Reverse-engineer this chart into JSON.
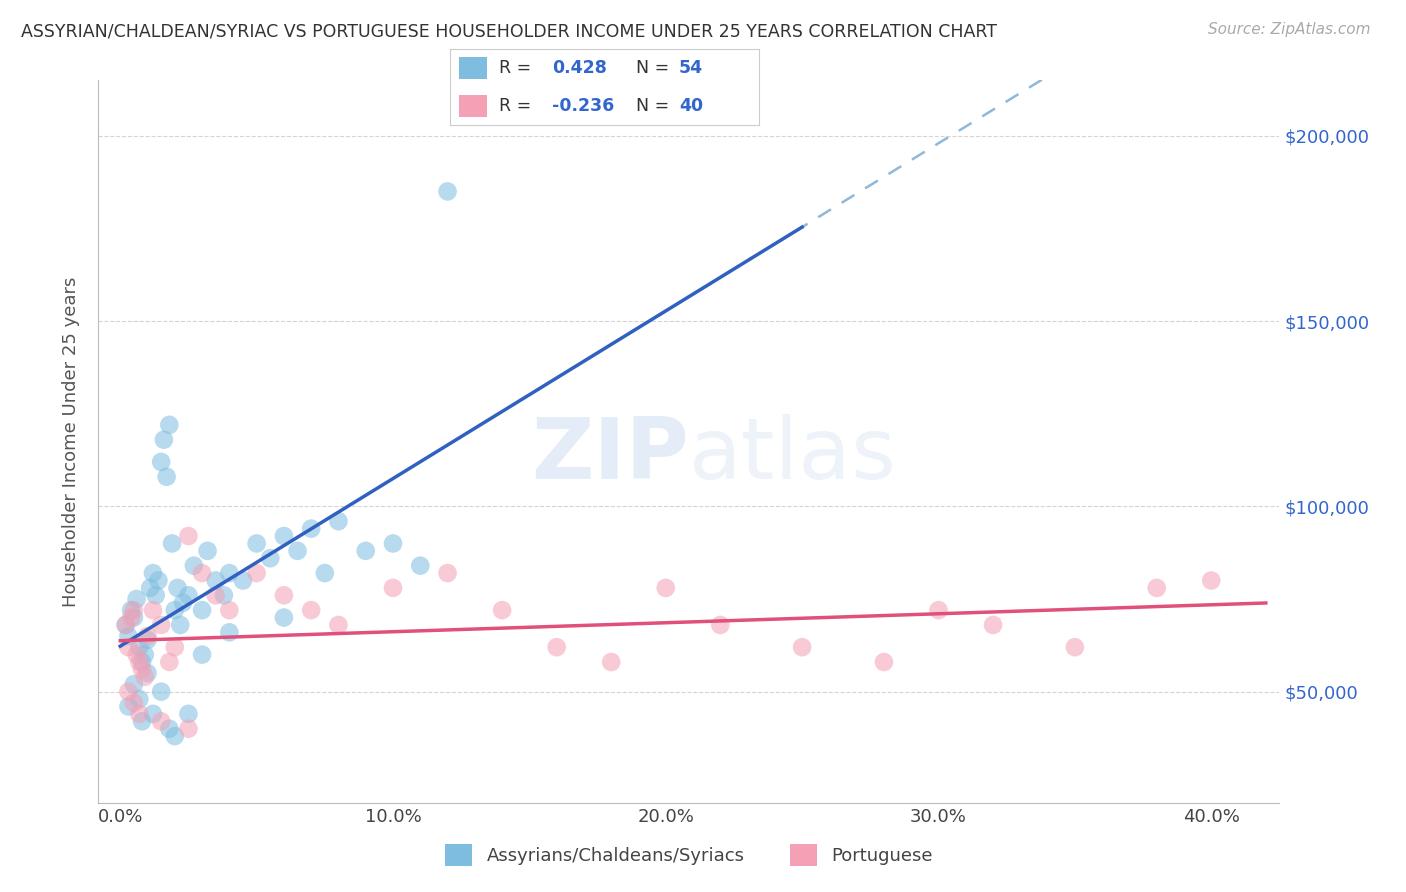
{
  "title": "ASSYRIAN/CHALDEAN/SYRIAC VS PORTUGUESE HOUSEHOLDER INCOME UNDER 25 YEARS CORRELATION CHART",
  "source": "Source: ZipAtlas.com",
  "ylabel": "Householder Income Under 25 years",
  "color_blue": "#7fbde0",
  "color_pink": "#f4a0b5",
  "line_blue": "#3060c0",
  "line_pink": "#e0507a",
  "line_dash_color": "#90b8d8",
  "background": "#ffffff",
  "grid_color": "#d0d0d0",
  "watermark_color": "#c5d8ee",
  "label1": "Assyrians/Chaldeans/Syriacs",
  "label2": "Portuguese"
}
